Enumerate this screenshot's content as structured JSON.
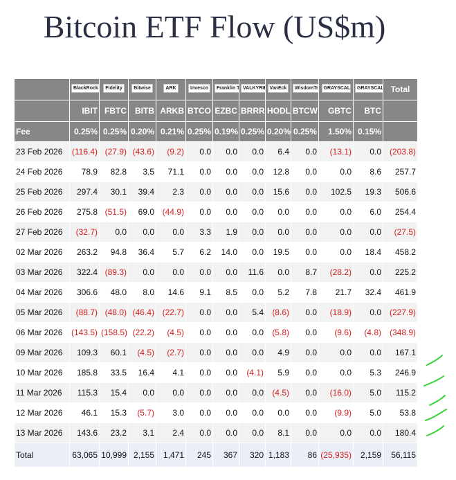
{
  "title": "Bitcoin ETF Flow (US$m)",
  "table": {
    "logos": [
      "BlackRock",
      "Fidelity",
      "Bitwise",
      "ARK",
      "Invesco",
      "Franklin Templeton",
      "VALKYRIE",
      "VanEck",
      "WisdomTree",
      "GRAYSCALE",
      "GRAYSCALE"
    ],
    "total_header": "Total",
    "tickers": [
      "IBIT",
      "FBTC",
      "BITB",
      "ARKB",
      "BTCO",
      "EZBC",
      "BRRR",
      "HODL",
      "BTCW",
      "GBTC",
      "BTC"
    ],
    "fee_label": "Fee",
    "fees": [
      "0.25%",
      "0.25%",
      "0.20%",
      "0.21%",
      "0.25%",
      "0.19%",
      "0.25%",
      "0.20%",
      "0.25%",
      "1.50%",
      "0.15%"
    ],
    "rows": [
      [
        "23 Feb 2026",
        "(116.4)",
        "(27.9)",
        "(43.6)",
        "(9.2)",
        "0.0",
        "0.0",
        "0.0",
        "6.4",
        "0.0",
        "(13.1)",
        "0.0",
        "(203.8)"
      ],
      [
        "24 Feb 2026",
        "78.9",
        "82.8",
        "3.5",
        "71.1",
        "0.0",
        "0.0",
        "0.0",
        "12.8",
        "0.0",
        "0.0",
        "8.6",
        "257.7"
      ],
      [
        "25 Feb 2026",
        "297.4",
        "30.1",
        "39.4",
        "2.3",
        "0.0",
        "0.0",
        "0.0",
        "15.6",
        "0.0",
        "102.5",
        "19.3",
        "506.6"
      ],
      [
        "26 Feb 2026",
        "275.8",
        "(51.5)",
        "69.0",
        "(44.9)",
        "0.0",
        "0.0",
        "0.0",
        "0.0",
        "0.0",
        "0.0",
        "6.0",
        "254.4"
      ],
      [
        "27 Feb 2026",
        "(32.7)",
        "0.0",
        "0.0",
        "0.0",
        "3.3",
        "1.9",
        "0.0",
        "0.0",
        "0.0",
        "0.0",
        "0.0",
        "(27.5)"
      ],
      [
        "02 Mar 2026",
        "263.2",
        "94.8",
        "36.4",
        "5.7",
        "6.2",
        "14.0",
        "0.0",
        "19.5",
        "0.0",
        "0.0",
        "18.4",
        "458.2"
      ],
      [
        "03 Mar 2026",
        "322.4",
        "(89.3)",
        "0.0",
        "0.0",
        "0.0",
        "0.0",
        "11.6",
        "0.0",
        "8.7",
        "(28.2)",
        "0.0",
        "225.2"
      ],
      [
        "04 Mar 2026",
        "306.6",
        "48.0",
        "8.0",
        "14.6",
        "9.1",
        "8.5",
        "0.0",
        "5.2",
        "7.8",
        "21.7",
        "32.4",
        "461.9"
      ],
      [
        "05 Mar 2026",
        "(88.7)",
        "(48.0)",
        "(46.4)",
        "(22.7)",
        "0.0",
        "0.0",
        "5.4",
        "(8.6)",
        "0.0",
        "(18.9)",
        "0.0",
        "(227.9)"
      ],
      [
        "06 Mar 2026",
        "(143.5)",
        "(158.5)",
        "(22.2)",
        "(4.5)",
        "0.0",
        "0.0",
        "0.0",
        "(5.8)",
        "0.0",
        "(9.6)",
        "(4.8)",
        "(348.9)"
      ],
      [
        "09 Mar 2026",
        "109.3",
        "60.1",
        "(4.5)",
        "(2.7)",
        "0.0",
        "0.0",
        "0.0",
        "4.9",
        "0.0",
        "0.0",
        "0.0",
        "167.1"
      ],
      [
        "10 Mar 2026",
        "185.8",
        "33.5",
        "16.4",
        "4.1",
        "0.0",
        "0.0",
        "(4.1)",
        "5.9",
        "0.0",
        "0.0",
        "5.3",
        "246.9"
      ],
      [
        "11 Mar 2026",
        "115.3",
        "15.4",
        "0.0",
        "0.0",
        "0.0",
        "0.0",
        "0.0",
        "(4.5)",
        "0.0",
        "(16.0)",
        "5.0",
        "115.2"
      ],
      [
        "12 Mar 2026",
        "46.1",
        "15.3",
        "(5.7)",
        "3.0",
        "0.0",
        "0.0",
        "0.0",
        "0.0",
        "0.0",
        "(9.9)",
        "5.0",
        "53.8"
      ],
      [
        "13 Mar 2026",
        "143.6",
        "23.2",
        "3.1",
        "2.4",
        "0.0",
        "0.0",
        "0.0",
        "8.1",
        "0.0",
        "0.0",
        "0.0",
        "180.4"
      ]
    ],
    "total_row": [
      "Total",
      "63,065",
      "10,999",
      "2,155",
      "1,471",
      "245",
      "367",
      "320",
      "1,183",
      "86",
      "(25,935)",
      "2,159",
      "56,115"
    ]
  }
}
